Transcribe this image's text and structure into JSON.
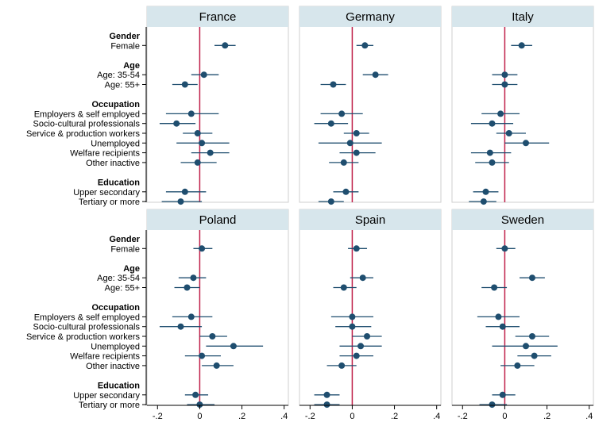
{
  "chart_data": {
    "type": "scatter",
    "layout": "coefficient plot, 2x3 panels",
    "xlim": [
      -0.25,
      0.42
    ],
    "xticks": [
      -0.2,
      0,
      0.2,
      0.4
    ],
    "xtick_labels": [
      "-.2",
      "0",
      ".2",
      ".4"
    ],
    "reference_line_x": 0,
    "colors": {
      "strip": "#d7e6ec",
      "marker": "#1f4e6f",
      "reference_line": "#c0204a",
      "panel_border": "#cfcfcf"
    },
    "rows": [
      {
        "label": "Gender",
        "header": true
      },
      {
        "label": "Female",
        "header": false
      },
      {
        "label": "",
        "header": false,
        "spacer": true
      },
      {
        "label": "Age",
        "header": true
      },
      {
        "label": "Age: 35-54",
        "header": false
      },
      {
        "label": "Age: 55+",
        "header": false
      },
      {
        "label": "",
        "header": false,
        "spacer": true
      },
      {
        "label": "Occupation",
        "header": true
      },
      {
        "label": "Employers & self employed",
        "header": false
      },
      {
        "label": "Socio-cultural professionals",
        "header": false
      },
      {
        "label": "Service & production workers",
        "header": false
      },
      {
        "label": "Unemployed",
        "header": false
      },
      {
        "label": "Welfare recipients",
        "header": false
      },
      {
        "label": "Other inactive",
        "header": false
      },
      {
        "label": "",
        "header": false,
        "spacer": true
      },
      {
        "label": "Education",
        "header": true
      },
      {
        "label": "Upper secondary",
        "header": false
      },
      {
        "label": "Tertiary or more",
        "header": false
      }
    ],
    "panels": [
      {
        "title": "France",
        "estimates": [
          {
            "label": "Female",
            "value": 0.12,
            "ci": [
              0.07,
              0.17
            ]
          },
          {
            "label": "Age: 35-54",
            "value": 0.02,
            "ci": [
              -0.04,
              0.09
            ]
          },
          {
            "label": "Age: 55+",
            "value": -0.07,
            "ci": [
              -0.13,
              -0.01
            ]
          },
          {
            "label": "Employers & self employed",
            "value": -0.04,
            "ci": [
              -0.16,
              0.09
            ]
          },
          {
            "label": "Socio-cultural professionals",
            "value": -0.11,
            "ci": [
              -0.19,
              -0.02
            ]
          },
          {
            "label": "Service & production workers",
            "value": -0.01,
            "ci": [
              -0.08,
              0.06
            ]
          },
          {
            "label": "Unemployed",
            "value": 0.01,
            "ci": [
              -0.11,
              0.14
            ]
          },
          {
            "label": "Welfare recipients",
            "value": 0.05,
            "ci": [
              -0.04,
              0.14
            ]
          },
          {
            "label": "Other inactive",
            "value": -0.01,
            "ci": [
              -0.09,
              0.08
            ]
          },
          {
            "label": "Upper secondary",
            "value": -0.07,
            "ci": [
              -0.16,
              0.03
            ]
          },
          {
            "label": "Tertiary or more",
            "value": -0.09,
            "ci": [
              -0.18,
              0.01
            ]
          }
        ]
      },
      {
        "title": "Germany",
        "estimates": [
          {
            "label": "Female",
            "value": 0.06,
            "ci": [
              0.02,
              0.1
            ]
          },
          {
            "label": "Age: 35-54",
            "value": 0.11,
            "ci": [
              0.05,
              0.17
            ]
          },
          {
            "label": "Age: 55+",
            "value": -0.09,
            "ci": [
              -0.15,
              -0.03
            ]
          },
          {
            "label": "Employers & self employed",
            "value": -0.05,
            "ci": [
              -0.15,
              0.05
            ]
          },
          {
            "label": "Socio-cultural professionals",
            "value": -0.1,
            "ci": [
              -0.18,
              -0.02
            ]
          },
          {
            "label": "Service & production workers",
            "value": 0.02,
            "ci": [
              -0.04,
              0.08
            ]
          },
          {
            "label": "Unemployed",
            "value": -0.01,
            "ci": [
              -0.16,
              0.14
            ]
          },
          {
            "label": "Welfare recipients",
            "value": 0.02,
            "ci": [
              -0.06,
              0.11
            ]
          },
          {
            "label": "Other inactive",
            "value": -0.04,
            "ci": [
              -0.11,
              0.03
            ]
          },
          {
            "label": "Upper secondary",
            "value": -0.03,
            "ci": [
              -0.09,
              0.03
            ]
          },
          {
            "label": "Tertiary or more",
            "value": -0.1,
            "ci": [
              -0.16,
              -0.04
            ]
          }
        ]
      },
      {
        "title": "Italy",
        "estimates": [
          {
            "label": "Female",
            "value": 0.08,
            "ci": [
              0.03,
              0.13
            ]
          },
          {
            "label": "Age: 35-54",
            "value": 0.0,
            "ci": [
              -0.06,
              0.06
            ]
          },
          {
            "label": "Age: 55+",
            "value": 0.0,
            "ci": [
              -0.06,
              0.06
            ]
          },
          {
            "label": "Employers & self employed",
            "value": -0.02,
            "ci": [
              -0.11,
              0.07
            ]
          },
          {
            "label": "Socio-cultural professionals",
            "value": -0.06,
            "ci": [
              -0.16,
              0.04
            ]
          },
          {
            "label": "Service & production workers",
            "value": 0.02,
            "ci": [
              -0.04,
              0.1
            ]
          },
          {
            "label": "Unemployed",
            "value": 0.1,
            "ci": [
              0.0,
              0.21
            ]
          },
          {
            "label": "Welfare recipients",
            "value": -0.07,
            "ci": [
              -0.16,
              0.03
            ]
          },
          {
            "label": "Other inactive",
            "value": -0.06,
            "ci": [
              -0.14,
              0.02
            ]
          },
          {
            "label": "Upper secondary",
            "value": -0.09,
            "ci": [
              -0.15,
              -0.03
            ]
          },
          {
            "label": "Tertiary or more",
            "value": -0.1,
            "ci": [
              -0.17,
              -0.04
            ]
          }
        ]
      },
      {
        "title": "Poland",
        "estimates": [
          {
            "label": "Female",
            "value": 0.01,
            "ci": [
              -0.03,
              0.06
            ]
          },
          {
            "label": "Age: 35-54",
            "value": -0.03,
            "ci": [
              -0.1,
              0.03
            ]
          },
          {
            "label": "Age: 55+",
            "value": -0.06,
            "ci": [
              -0.12,
              0.0
            ]
          },
          {
            "label": "Employers & self employed",
            "value": -0.04,
            "ci": [
              -0.13,
              0.06
            ]
          },
          {
            "label": "Socio-cultural professionals",
            "value": -0.09,
            "ci": [
              -0.19,
              0.01
            ]
          },
          {
            "label": "Service & production workers",
            "value": 0.06,
            "ci": [
              0.0,
              0.13
            ]
          },
          {
            "label": "Unemployed",
            "value": 0.16,
            "ci": [
              0.03,
              0.3
            ]
          },
          {
            "label": "Welfare recipients",
            "value": 0.01,
            "ci": [
              -0.07,
              0.1
            ]
          },
          {
            "label": "Other inactive",
            "value": 0.08,
            "ci": [
              0.01,
              0.16
            ]
          },
          {
            "label": "Upper secondary",
            "value": -0.02,
            "ci": [
              -0.07,
              0.04
            ]
          },
          {
            "label": "Tertiary or more",
            "value": 0.0,
            "ci": [
              -0.06,
              0.07
            ]
          }
        ]
      },
      {
        "title": "Spain",
        "estimates": [
          {
            "label": "Female",
            "value": 0.02,
            "ci": [
              -0.02,
              0.07
            ]
          },
          {
            "label": "Age: 35-54",
            "value": 0.05,
            "ci": [
              -0.01,
              0.1
            ]
          },
          {
            "label": "Age: 55+",
            "value": -0.04,
            "ci": [
              -0.09,
              0.02
            ]
          },
          {
            "label": "Employers & self employed",
            "value": 0.0,
            "ci": [
              -0.1,
              0.1
            ]
          },
          {
            "label": "Socio-cultural professionals",
            "value": 0.0,
            "ci": [
              -0.08,
              0.09
            ]
          },
          {
            "label": "Service & production workers",
            "value": 0.07,
            "ci": [
              0.0,
              0.14
            ]
          },
          {
            "label": "Unemployed",
            "value": 0.04,
            "ci": [
              -0.06,
              0.14
            ]
          },
          {
            "label": "Welfare recipients",
            "value": 0.02,
            "ci": [
              -0.06,
              0.1
            ]
          },
          {
            "label": "Other inactive",
            "value": -0.05,
            "ci": [
              -0.12,
              0.02
            ]
          },
          {
            "label": "Upper secondary",
            "value": -0.12,
            "ci": [
              -0.18,
              -0.06
            ]
          },
          {
            "label": "Tertiary or more",
            "value": -0.12,
            "ci": [
              -0.18,
              -0.06
            ]
          }
        ]
      },
      {
        "title": "Sweden",
        "estimates": [
          {
            "label": "Female",
            "value": 0.0,
            "ci": [
              -0.04,
              0.05
            ]
          },
          {
            "label": "Age: 35-54",
            "value": 0.13,
            "ci": [
              0.07,
              0.19
            ]
          },
          {
            "label": "Age: 55+",
            "value": -0.05,
            "ci": [
              -0.11,
              0.01
            ]
          },
          {
            "label": "Employers & self employed",
            "value": -0.03,
            "ci": [
              -0.13,
              0.07
            ]
          },
          {
            "label": "Socio-cultural professionals",
            "value": -0.01,
            "ci": [
              -0.09,
              0.07
            ]
          },
          {
            "label": "Service & production workers",
            "value": 0.13,
            "ci": [
              0.05,
              0.21
            ]
          },
          {
            "label": "Unemployed",
            "value": 0.1,
            "ci": [
              -0.06,
              0.25
            ]
          },
          {
            "label": "Welfare recipients",
            "value": 0.14,
            "ci": [
              0.06,
              0.22
            ]
          },
          {
            "label": "Other inactive",
            "value": 0.06,
            "ci": [
              -0.02,
              0.14
            ]
          },
          {
            "label": "Upper secondary",
            "value": -0.01,
            "ci": [
              -0.06,
              0.05
            ]
          },
          {
            "label": "Tertiary or more",
            "value": -0.06,
            "ci": [
              -0.12,
              0.01
            ]
          }
        ]
      }
    ]
  }
}
